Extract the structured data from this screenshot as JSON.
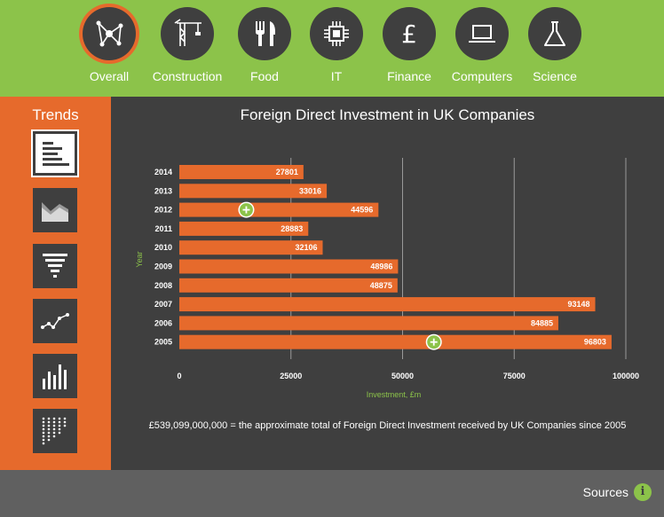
{
  "nav": {
    "items": [
      {
        "label": "Overall",
        "icon": "network-icon",
        "active": true
      },
      {
        "label": "Construction",
        "icon": "crane-icon"
      },
      {
        "label": "Food",
        "icon": "fork-knife-icon"
      },
      {
        "label": "IT",
        "icon": "chip-icon"
      },
      {
        "label": "Finance",
        "icon": "pound-icon"
      },
      {
        "label": "Computers",
        "icon": "laptop-icon"
      },
      {
        "label": "Science",
        "icon": "flask-icon"
      }
    ]
  },
  "sidebar": {
    "title": "Trends",
    "buttons": [
      {
        "icon": "bar-chart-icon",
        "active": true
      },
      {
        "icon": "area-chart-icon"
      },
      {
        "icon": "funnel-icon"
      },
      {
        "icon": "line-chart-icon"
      },
      {
        "icon": "column-chart-icon"
      },
      {
        "icon": "dot-matrix-icon"
      }
    ]
  },
  "main": {
    "title": "Foreign Direct Investment in UK Companies",
    "summary": "£539,099,000,000 = the approximate total of Foreign Direct Investment received by UK Companies since 2005"
  },
  "chart_data": {
    "type": "bar",
    "orientation": "horizontal",
    "categories": [
      "2014",
      "2013",
      "2012",
      "2011",
      "2010",
      "2009",
      "2008",
      "2007",
      "2006",
      "2005"
    ],
    "values": [
      27801,
      33016,
      44596,
      28883,
      32106,
      48986,
      48875,
      93148,
      84885,
      96803
    ],
    "xlabel": "Investment, £m",
    "ylabel": "Year",
    "xlim": [
      0,
      100000
    ],
    "xticks": [
      0,
      25000,
      50000,
      75000,
      100000
    ],
    "grid": true,
    "bar_color": "#e66a2c",
    "markers": [
      {
        "category": "2012",
        "value": 15000
      },
      {
        "category": "2005",
        "value": 57000
      }
    ]
  },
  "footer": {
    "sources_label": "Sources",
    "info_symbol": "i"
  },
  "colors": {
    "green": "#8cc34a",
    "orange": "#e66a2c",
    "dark": "#3f3f3f",
    "footer": "#606060"
  }
}
